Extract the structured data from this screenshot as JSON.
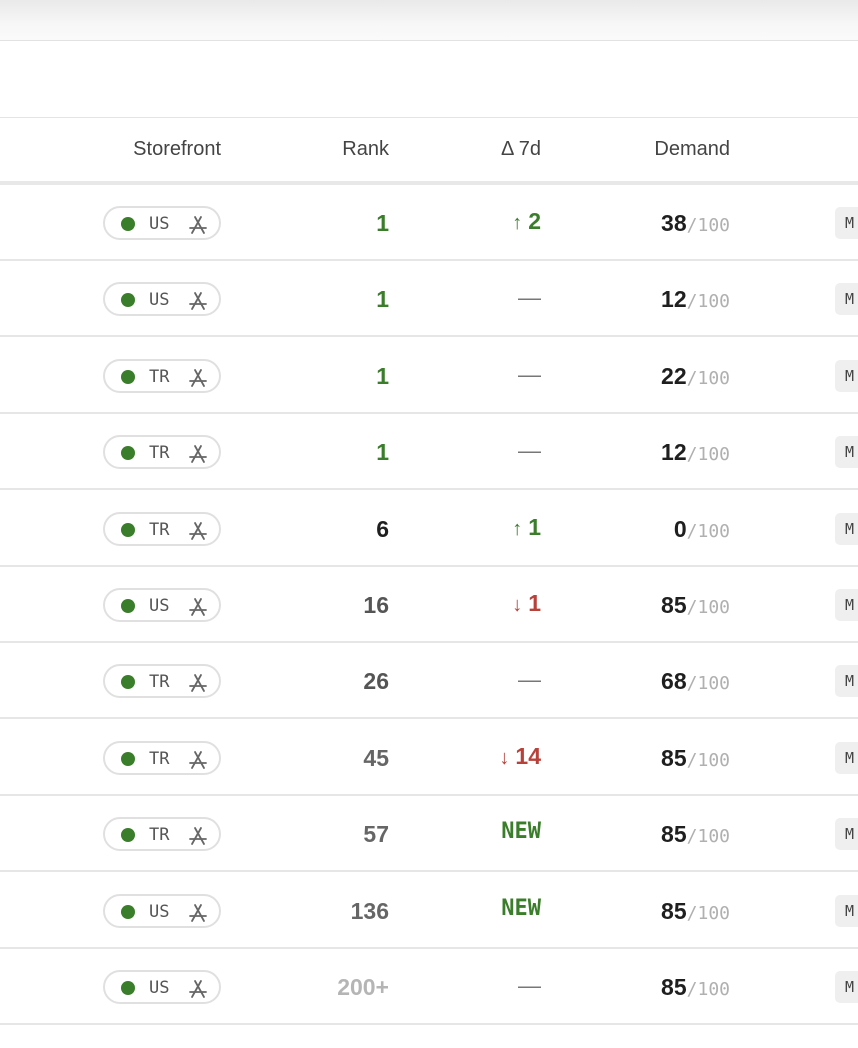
{
  "header": {
    "columns": [
      "Storefront",
      "Rank",
      "Δ 7d",
      "Demand"
    ]
  },
  "demand_suffix": "/100",
  "tag": "M",
  "rows": [
    {
      "storefront": "US",
      "rank": 1,
      "rank_color": "#3a7d2a",
      "delta": {
        "dir": "up",
        "text": "2"
      },
      "demand": 38
    },
    {
      "storefront": "US",
      "rank": 1,
      "rank_color": "#3a7d2a",
      "delta": {
        "text": "—"
      },
      "demand": 12
    },
    {
      "storefront": "TR",
      "rank": 1,
      "rank_color": "#3a7d2a",
      "delta": {
        "text": "—"
      },
      "demand": 22
    },
    {
      "storefront": "TR",
      "rank": 1,
      "rank_color": "#3a7d2a",
      "delta": {
        "text": "—"
      },
      "demand": 12
    },
    {
      "storefront": "TR",
      "rank": 6,
      "rank_color": "#1f1f1f",
      "delta": {
        "dir": "up",
        "text": "1"
      },
      "demand": 0
    },
    {
      "storefront": "US",
      "rank": 16,
      "rank_color": "#555555",
      "delta": {
        "dir": "down",
        "text": "1"
      },
      "demand": 85
    },
    {
      "storefront": "TR",
      "rank": 26,
      "rank_color": "#555555",
      "delta": {
        "text": "—"
      },
      "demand": 68
    },
    {
      "storefront": "TR",
      "rank": 45,
      "rank_color": "#666666",
      "delta": {
        "dir": "down",
        "text": "14"
      },
      "demand": 85
    },
    {
      "storefront": "TR",
      "rank": 57,
      "rank_color": "#666666",
      "delta": {
        "dir": "new",
        "text": "NEW"
      },
      "demand": 85
    },
    {
      "storefront": "US",
      "rank": 136,
      "rank_color": "#666666",
      "delta": {
        "dir": "new",
        "text": "NEW"
      },
      "demand": 85
    },
    {
      "storefront": "US",
      "rank": "200+",
      "rank_color": "#b5b5b5",
      "delta": {
        "text": "—"
      },
      "demand": 85
    }
  ]
}
